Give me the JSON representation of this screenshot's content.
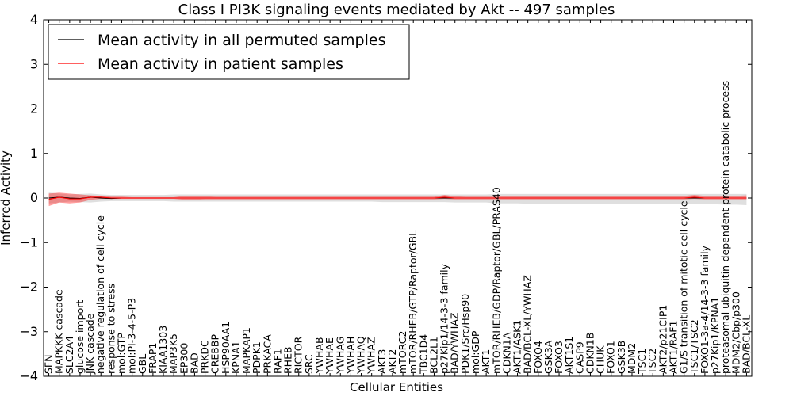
{
  "chart_data": {
    "type": "line",
    "title": "Class I PI3K signaling events mediated by Akt -- 497 samples",
    "xlabel": "Cellular Entities",
    "ylabel": "Inferred Activity",
    "ylim": [
      -4,
      4
    ],
    "yticks": [
      -4,
      -3,
      -2,
      -1,
      0,
      1,
      2,
      3,
      4
    ],
    "ytick_labels": [
      "−4",
      "−3",
      "−2",
      "−1",
      "0",
      "1",
      "2",
      "3",
      "4"
    ],
    "legend_position": "top-left",
    "categories": [
      "SFN",
      "MAPKKK cascade",
      "SLC2A4",
      "glucose import",
      "JNK cascade",
      "negative regulation of cell cycle",
      "response to stress",
      "mol:GTP",
      "mol:PI-3-4-5-P3",
      "GBL",
      "FRAP1",
      "KIAA1303",
      "MAP3K5",
      "EP300",
      "BAD",
      "PRKDC",
      "CREBBP",
      "HSP90AA1",
      "KPNA1",
      "MAPKAP1",
      "PDPK1",
      "PRKACA",
      "RAF1",
      "RHEB",
      "RICTOR",
      "SRC",
      "YWHAB",
      "YWHAE",
      "YWHAG",
      "YWHAH",
      "YWHAQ",
      "YWHAZ",
      "AKT3",
      "AKT2",
      "mTORC2",
      "mTOR/RHEB/GTP/Raptor/GBL",
      "TBC1D4",
      "BCL2L1",
      "p27Kip1/14-3-3 family",
      "BAD/YWHAZ",
      "PDK1/Src/Hsp90",
      "mol:GDP",
      "AKT1",
      "mTOR/RHEB/GDP/Raptor/GBL/PRAS40",
      "CDKN1A",
      "AKT1/ASK1",
      "BAD/BCL-XL/YWHAZ",
      "FOXO4",
      "GSK3A",
      "FOXO3",
      "AKT1S1",
      "CASP9",
      "CDKN1B",
      "CHUK",
      "FOXO1",
      "GSK3B",
      "MDM2",
      "TSC1",
      "TSC2",
      "AKT2/p21CIP1",
      "AKT1/RAF1",
      "G1/S transition of mitotic cell cycle",
      "TSC1/TSC2",
      "FOXO1-3a-4/14-3-3 family",
      "p27Kip1/KPNA1",
      "proteasomal ubiquitin-dependent protein catabolic process",
      "MDM2/Cbp/p300",
      "BAD/BCL-XL"
    ],
    "series": [
      {
        "name": "Mean activity in all permuted samples",
        "color": "#000000",
        "values": [
          0.0,
          0.02,
          0.0,
          -0.01,
          0.02,
          0.0,
          -0.01,
          0.0,
          0.0,
          0.0,
          0.0,
          0.0,
          0.0,
          0.0,
          0.0,
          0.0,
          0.0,
          0.0,
          0.0,
          0.0,
          0.0,
          0.0,
          0.0,
          0.0,
          0.0,
          0.0,
          0.0,
          0.0,
          0.0,
          0.0,
          0.0,
          0.0,
          0.0,
          0.0,
          0.0,
          0.0,
          0.0,
          0.0,
          0.0,
          0.0,
          0.0,
          0.0,
          0.0,
          0.0,
          0.0,
          0.0,
          0.0,
          0.0,
          0.0,
          0.0,
          0.0,
          0.0,
          0.0,
          0.0,
          0.0,
          0.0,
          0.0,
          0.0,
          0.0,
          0.0,
          0.0,
          0.0,
          0.0,
          0.0,
          0.0,
          0.0,
          0.0,
          0.0
        ],
        "band_upper": [
          0.12,
          0.1,
          0.08,
          0.09,
          0.1,
          0.08,
          0.07,
          0.07,
          0.07,
          0.07,
          0.07,
          0.07,
          0.08,
          0.08,
          0.08,
          0.08,
          0.08,
          0.08,
          0.08,
          0.08,
          0.08,
          0.08,
          0.08,
          0.08,
          0.08,
          0.08,
          0.08,
          0.08,
          0.08,
          0.08,
          0.08,
          0.08,
          0.08,
          0.08,
          0.08,
          0.08,
          0.08,
          0.08,
          0.08,
          0.08,
          0.08,
          0.08,
          0.08,
          0.09,
          0.09,
          0.09,
          0.09,
          0.09,
          0.09,
          0.09,
          0.09,
          0.09,
          0.09,
          0.09,
          0.09,
          0.09,
          0.09,
          0.09,
          0.09,
          0.09,
          0.09,
          0.09,
          0.09,
          0.09,
          0.09,
          0.09,
          0.09,
          0.09
        ],
        "band_lower": [
          -0.12,
          -0.1,
          -0.08,
          -0.09,
          -0.1,
          -0.08,
          -0.07,
          -0.07,
          -0.07,
          -0.07,
          -0.07,
          -0.07,
          -0.08,
          -0.08,
          -0.08,
          -0.08,
          -0.08,
          -0.08,
          -0.08,
          -0.08,
          -0.08,
          -0.08,
          -0.08,
          -0.08,
          -0.08,
          -0.08,
          -0.08,
          -0.08,
          -0.08,
          -0.08,
          -0.08,
          -0.08,
          -0.09,
          -0.09,
          -0.09,
          -0.09,
          -0.09,
          -0.09,
          -0.09,
          -0.1,
          -0.1,
          -0.1,
          -0.1,
          -0.12,
          -0.12,
          -0.12,
          -0.13,
          -0.13,
          -0.13,
          -0.13,
          -0.13,
          -0.13,
          -0.13,
          -0.13,
          -0.13,
          -0.13,
          -0.13,
          -0.13,
          -0.13,
          -0.13,
          -0.13,
          -0.13,
          -0.14,
          -0.14,
          -0.14,
          -0.15,
          -0.15,
          -0.16
        ]
      },
      {
        "name": "Mean activity in patient samples",
        "color": "#ff0000",
        "values": [
          -0.03,
          0.02,
          -0.02,
          -0.02,
          0.02,
          0.02,
          0.0,
          0.0,
          0.0,
          0.0,
          0.0,
          0.0,
          0.0,
          0.0,
          0.0,
          0.0,
          0.0,
          0.0,
          0.0,
          0.0,
          0.0,
          0.0,
          0.0,
          0.0,
          0.0,
          0.0,
          0.0,
          0.0,
          0.0,
          0.0,
          0.0,
          0.0,
          0.0,
          0.0,
          0.0,
          0.0,
          0.0,
          0.0,
          0.02,
          0.0,
          0.0,
          0.0,
          0.0,
          0.0,
          0.0,
          0.0,
          0.0,
          0.0,
          0.0,
          0.0,
          0.0,
          0.0,
          0.0,
          0.0,
          0.0,
          0.0,
          0.0,
          0.0,
          0.0,
          0.0,
          0.0,
          0.0,
          0.02,
          0.0,
          0.0,
          0.0,
          0.0,
          0.0
        ],
        "band_upper": [
          0.1,
          0.12,
          0.1,
          0.08,
          0.06,
          0.05,
          0.03,
          0.03,
          0.02,
          0.02,
          0.02,
          0.02,
          0.02,
          0.05,
          0.05,
          0.04,
          0.03,
          0.03,
          0.03,
          0.03,
          0.03,
          0.03,
          0.03,
          0.03,
          0.03,
          0.03,
          0.03,
          0.03,
          0.03,
          0.03,
          0.03,
          0.03,
          0.03,
          0.03,
          0.03,
          0.03,
          0.03,
          0.03,
          0.07,
          0.04,
          0.03,
          0.03,
          0.03,
          0.03,
          0.05,
          0.05,
          0.05,
          0.05,
          0.05,
          0.05,
          0.05,
          0.05,
          0.05,
          0.05,
          0.05,
          0.05,
          0.05,
          0.05,
          0.05,
          0.05,
          0.05,
          0.05,
          0.07,
          0.05,
          0.05,
          0.05,
          0.05,
          0.06
        ],
        "band_lower": [
          -0.18,
          -0.1,
          -0.12,
          -0.1,
          -0.04,
          -0.02,
          -0.02,
          -0.02,
          -0.02,
          -0.02,
          -0.02,
          -0.02,
          -0.02,
          -0.04,
          -0.04,
          -0.03,
          -0.03,
          -0.03,
          -0.03,
          -0.03,
          -0.03,
          -0.03,
          -0.03,
          -0.03,
          -0.03,
          -0.03,
          -0.03,
          -0.03,
          -0.03,
          -0.03,
          -0.03,
          -0.03,
          -0.03,
          -0.03,
          -0.03,
          -0.03,
          -0.03,
          -0.03,
          -0.02,
          -0.03,
          -0.03,
          -0.03,
          -0.03,
          -0.03,
          -0.03,
          -0.03,
          -0.03,
          -0.03,
          -0.03,
          -0.03,
          -0.03,
          -0.03,
          -0.03,
          -0.03,
          -0.03,
          -0.03,
          -0.03,
          -0.03,
          -0.03,
          -0.03,
          -0.03,
          -0.03,
          -0.02,
          -0.03,
          -0.03,
          -0.03,
          -0.03,
          -0.03
        ]
      }
    ]
  }
}
